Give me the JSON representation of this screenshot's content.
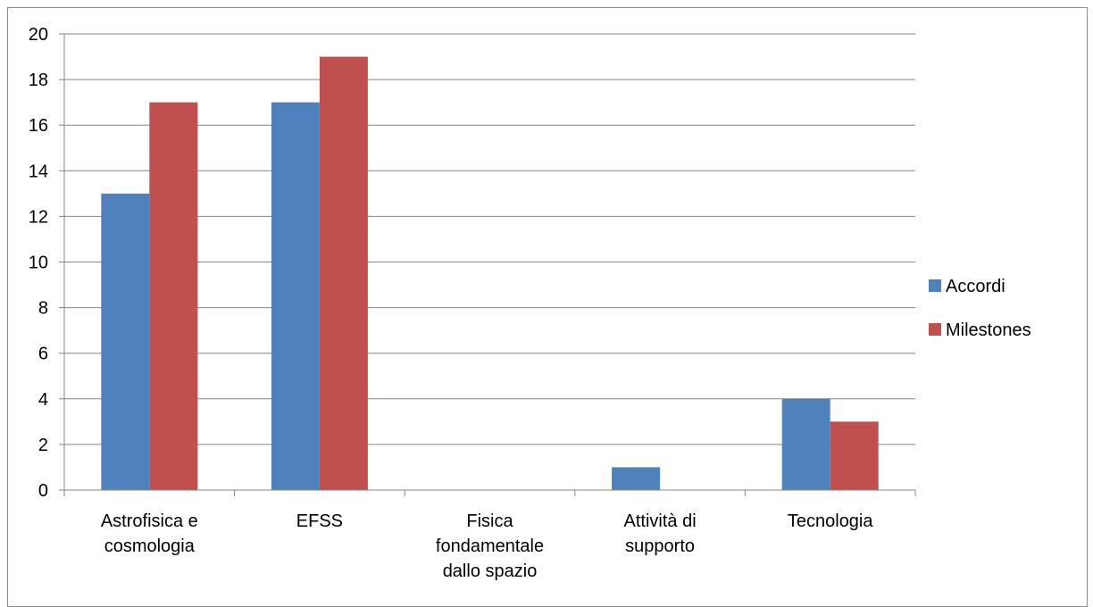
{
  "chart_data": {
    "type": "bar",
    "categories": [
      [
        "Astrofisica e",
        "cosmologia"
      ],
      [
        "EFSS"
      ],
      [
        "Fisica",
        "fondamentale",
        "dallo spazio"
      ],
      [
        "Attività di",
        "supporto"
      ],
      [
        "Tecnologia"
      ]
    ],
    "series": [
      {
        "name": "Accordi",
        "color": "#4f81bd",
        "values": [
          13,
          17,
          0,
          1,
          4
        ]
      },
      {
        "name": "Milestones",
        "color": "#c0504d",
        "values": [
          17,
          19,
          0,
          0,
          3
        ]
      }
    ],
    "ylim": [
      0,
      20
    ],
    "yticks": [
      "0",
      "2",
      "4",
      "6",
      "8",
      "10",
      "12",
      "14",
      "16",
      "18",
      "20"
    ],
    "grid": true,
    "legend_position": "right",
    "title": "",
    "xlabel": "",
    "ylabel": ""
  }
}
